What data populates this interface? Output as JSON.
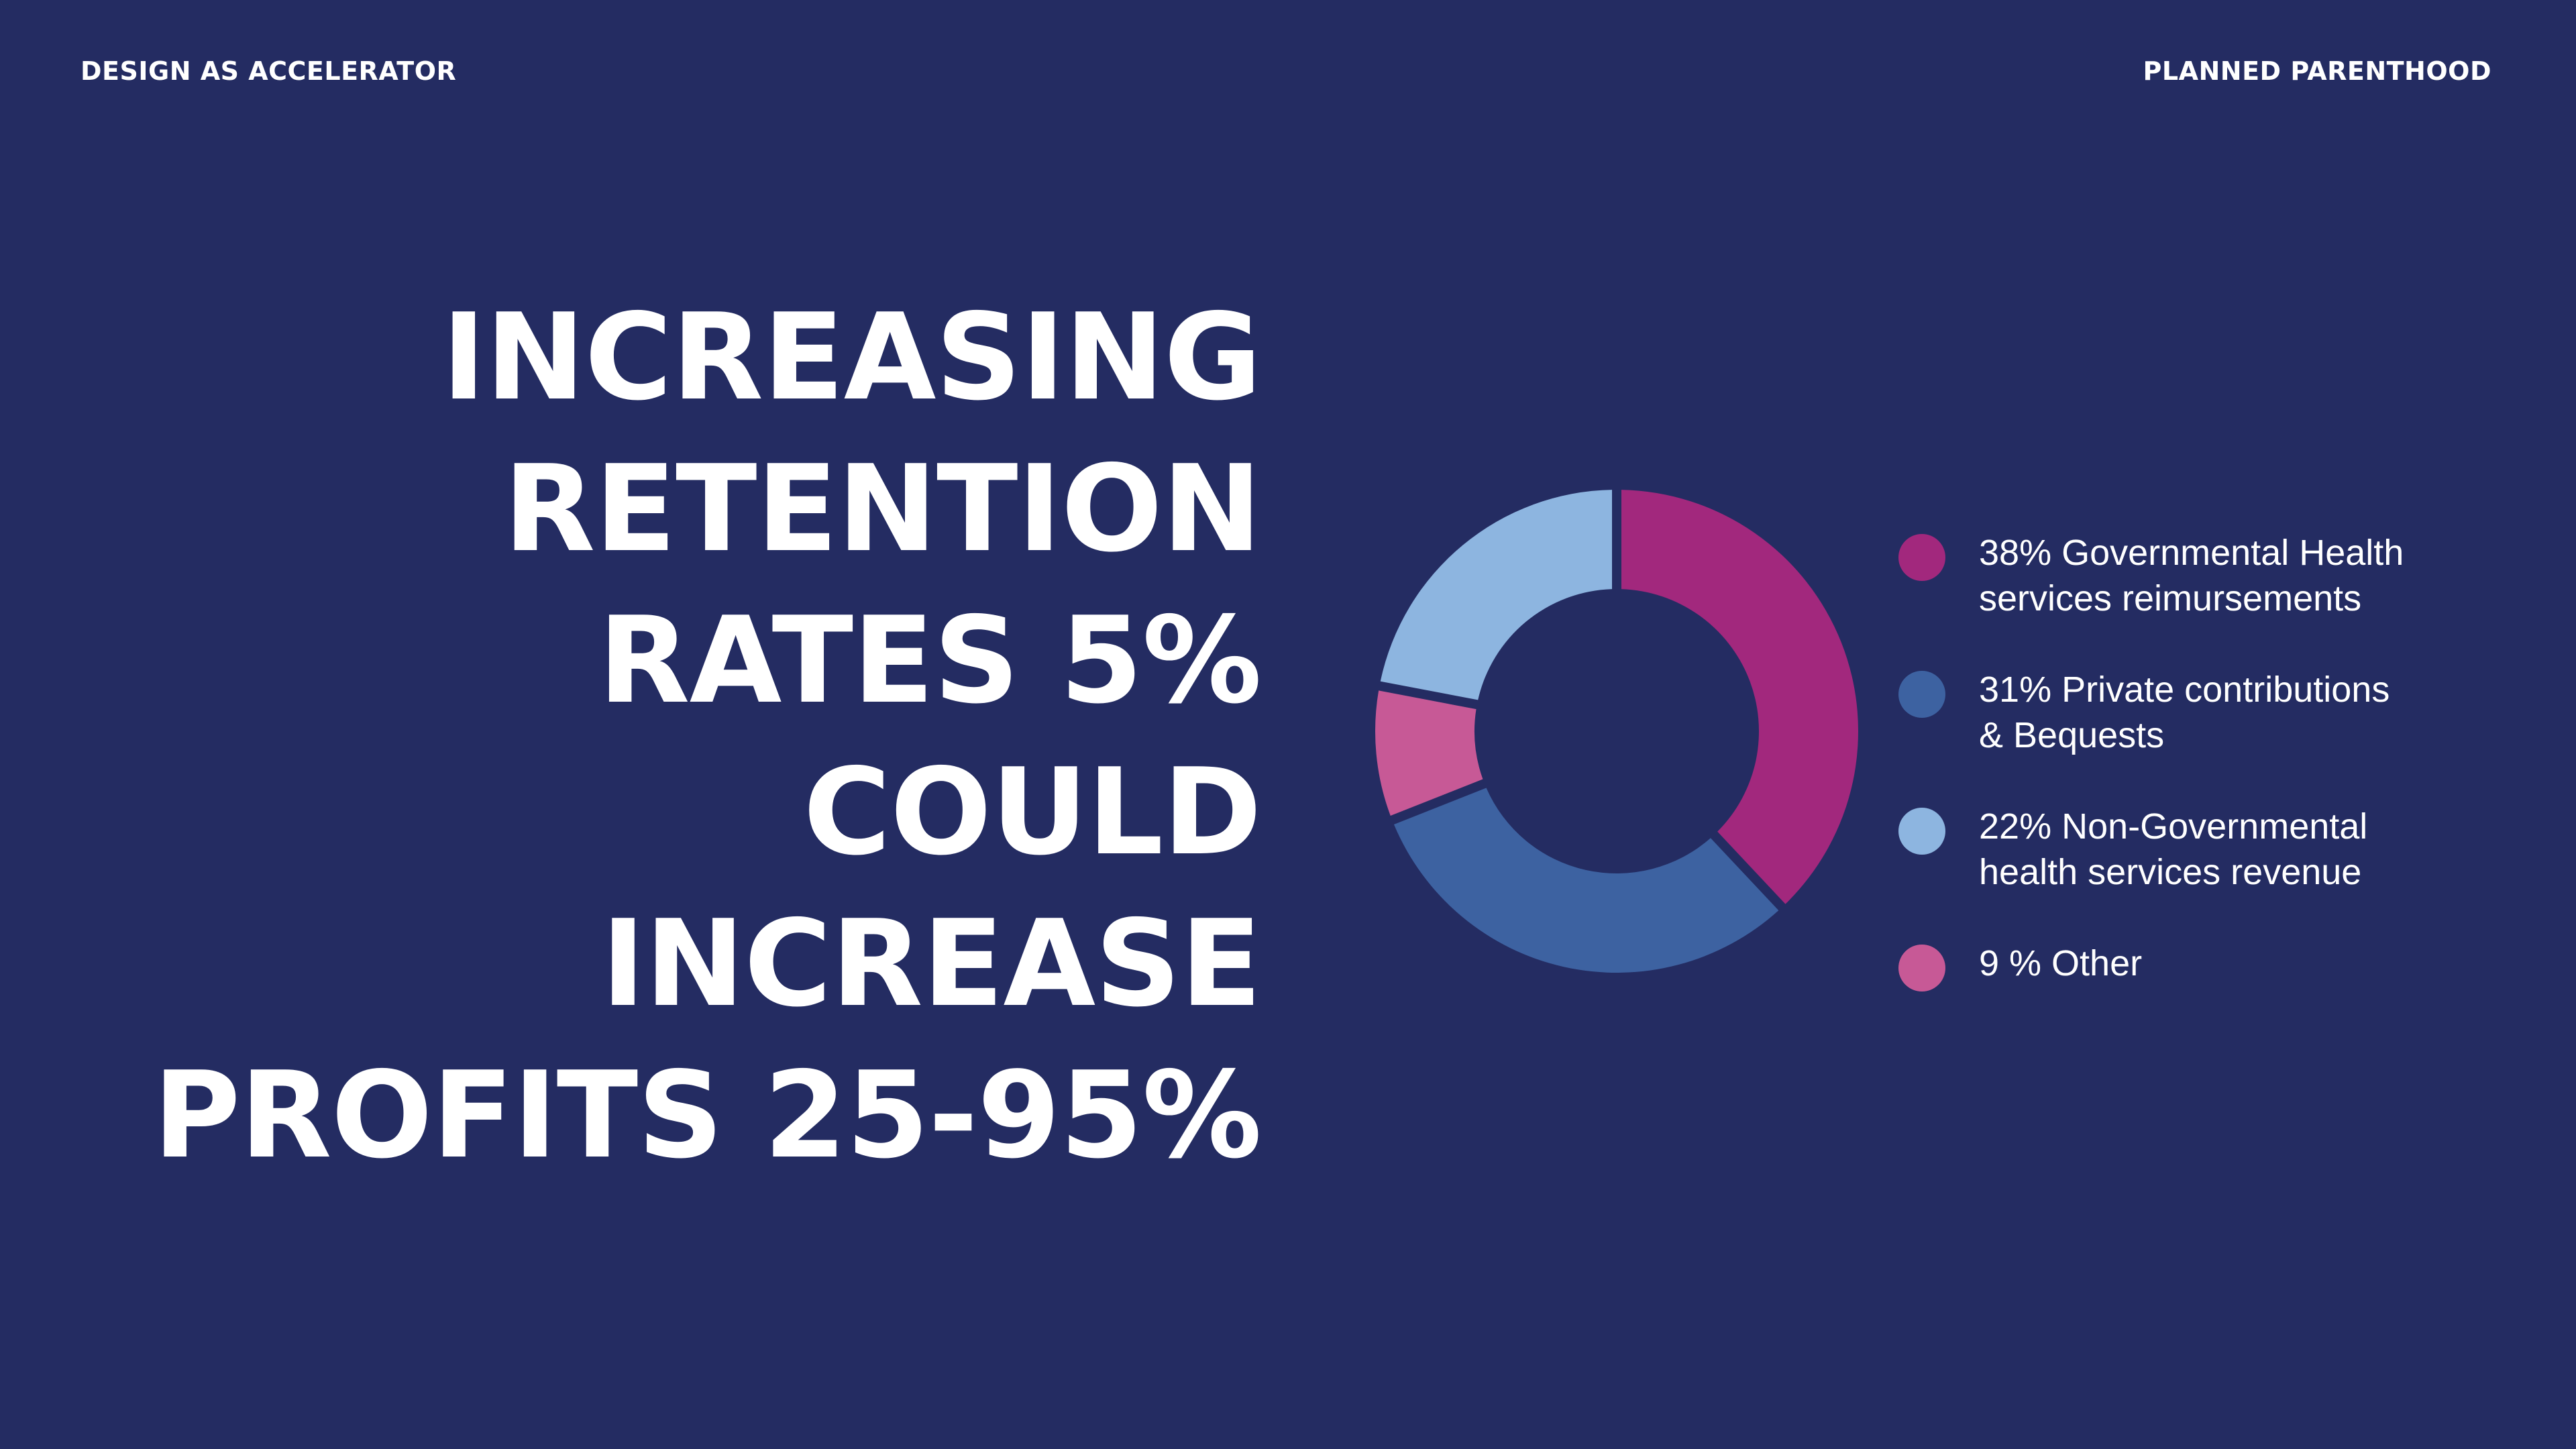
{
  "header": {
    "left_label": "DESIGN AS ACCELERATOR",
    "right_label": "PLANNED PARENTHOOD"
  },
  "headline": {
    "lines": [
      "INCREASING",
      "RETENTION",
      "RATES 5%",
      "COULD",
      "INCREASE",
      "PROFITS 25-95%"
    ]
  },
  "colors": {
    "background": "#242c62",
    "text": "#ffffff"
  },
  "chart_data": {
    "type": "pie",
    "donut": true,
    "categories": [
      "Governmental Health services reimursements",
      "Private contributions & Bequests",
      "Non-Governmental health services revenue",
      "Other"
    ],
    "values": [
      38,
      31,
      22,
      9
    ],
    "slice_order_clockwise_from_top": [
      0,
      1,
      3,
      2
    ],
    "colors": [
      "#a2287d",
      "#3d62a1",
      "#8db5e0",
      "#c75996"
    ],
    "legend": [
      {
        "lines": [
          "38% Governmental Health",
          "services reimursements"
        ],
        "color": "#a2287d"
      },
      {
        "lines": [
          "31% Private contributions",
          "& Bequests"
        ],
        "color": "#3d62a1"
      },
      {
        "lines": [
          "22% Non-Governmental",
          "health services revenue"
        ],
        "color": "#8db5e0"
      },
      {
        "lines": [
          "9 % Other"
        ],
        "color": "#c75996"
      }
    ],
    "legend_position": "right"
  }
}
